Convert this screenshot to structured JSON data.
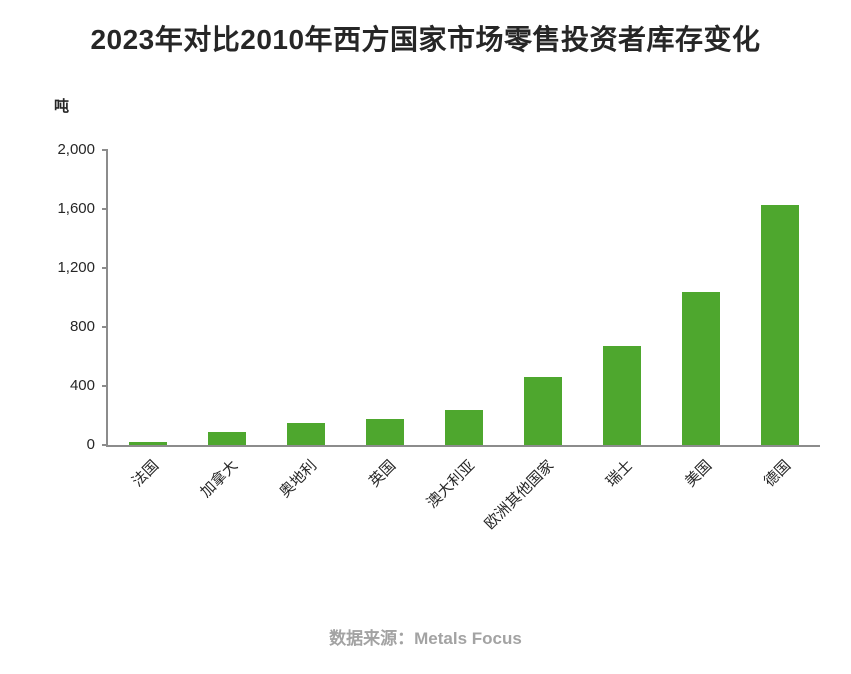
{
  "title": "2023年对比2010年西方国家市场零售投资者库存变化",
  "unit_label": "吨",
  "source": "数据来源：Metals Focus",
  "colors": {
    "bar": "#4EA72E",
    "axis": "#8c8c8c",
    "text": "#262626",
    "source": "#a3a3a3"
  },
  "chart_data": {
    "type": "bar",
    "title": "2023年对比2010年西方国家市场零售投资者库存变化",
    "categories": [
      "法国",
      "加拿大",
      "奥地利",
      "英国",
      "澳大利亚",
      "欧洲其他国家",
      "瑞士",
      "美国",
      "德国"
    ],
    "values": [
      20,
      85,
      150,
      175,
      235,
      460,
      670,
      1035,
      1630
    ],
    "xlabel": "",
    "ylabel": "吨",
    "ylim": [
      0,
      2000
    ],
    "yticks": [
      0,
      400,
      800,
      1200,
      1600,
      2000
    ],
    "ytick_labels": [
      "0",
      "400",
      "800",
      "1,200",
      "1,600",
      "2,000"
    ],
    "grid": false,
    "legend": false,
    "bar_color": "#4EA72E",
    "source_note": "数据来源：Metals Focus"
  }
}
